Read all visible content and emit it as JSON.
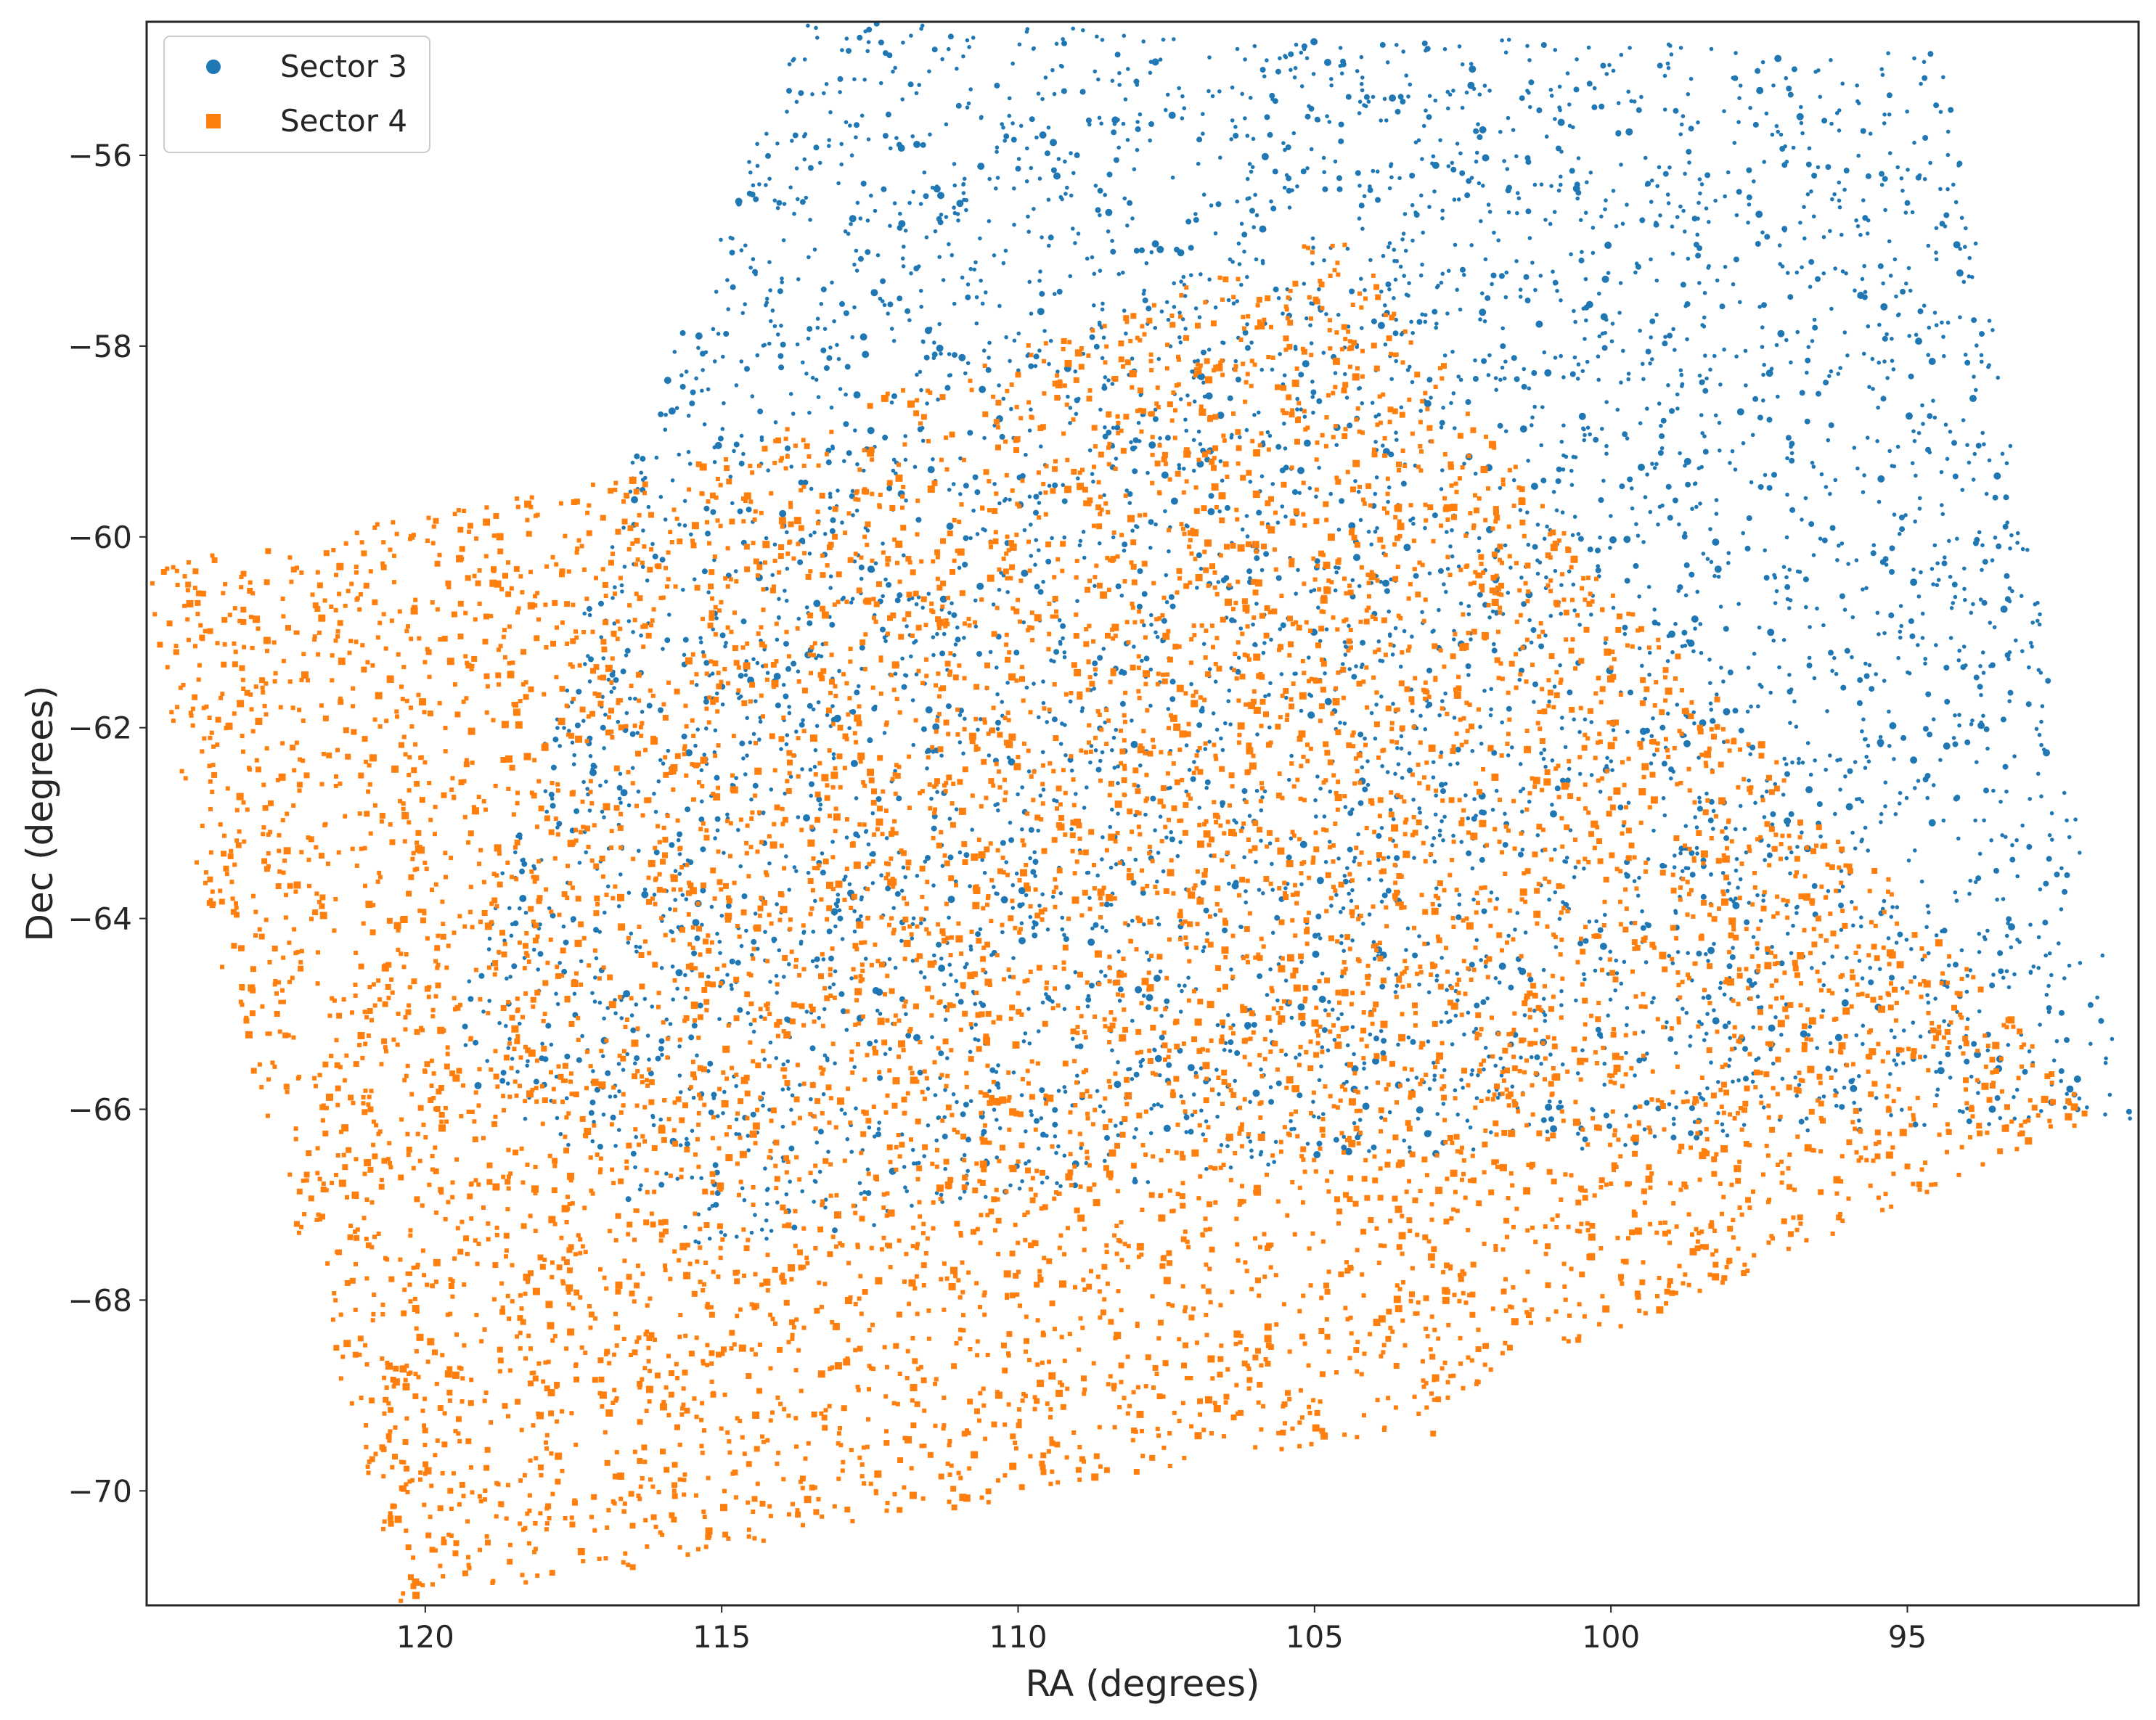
{
  "chart_data": {
    "type": "scatter",
    "title": "",
    "xlabel": "RA (degrees)",
    "ylabel": "Dec (degrees)",
    "xlim": [
      124.7,
      91.1
    ],
    "ylim": [
      -71.2,
      -54.6
    ],
    "x_inverted": true,
    "xticks": [
      120,
      115,
      110,
      105,
      100,
      95
    ],
    "xtick_labels": [
      "120",
      "115",
      "110",
      "105",
      "100",
      "95"
    ],
    "yticks": [
      -56,
      -58,
      -60,
      -62,
      -64,
      -66,
      -68,
      -70
    ],
    "ytick_labels": [
      "−56",
      "−58",
      "−60",
      "−62",
      "−64",
      "−66",
      "−68",
      "−70"
    ],
    "grid": false,
    "legend_position": "top-left",
    "series": [
      {
        "name": "Sector 3",
        "marker": "circle",
        "color": "#1f77b4",
        "footprint_corners": [
          [
            113.6,
            -54.6
          ],
          [
            94.4,
            -54.9
          ],
          [
            91.2,
            -66.1
          ],
          [
            106.0,
            -66.6
          ],
          [
            115.4,
            -67.5
          ],
          [
            119.7,
            -65.5
          ],
          [
            116.3,
            -58.8
          ]
        ],
        "approx_point_count": 5200,
        "sample_points": [
          {
            "x": 113.0,
            "y": -55.2
          },
          {
            "x": 110.2,
            "y": -55.8
          },
          {
            "x": 105.8,
            "y": -55.6
          },
          {
            "x": 101.5,
            "y": -55.4
          },
          {
            "x": 97.0,
            "y": -55.3
          },
          {
            "x": 95.0,
            "y": -56.5
          },
          {
            "x": 96.5,
            "y": -58.5
          },
          {
            "x": 94.2,
            "y": -60.5
          },
          {
            "x": 95.8,
            "y": -61.5
          },
          {
            "x": 93.5,
            "y": -63.5
          },
          {
            "x": 92.4,
            "y": -65.6
          },
          {
            "x": 94.0,
            "y": -65.5
          },
          {
            "x": 99.0,
            "y": -59.8
          },
          {
            "x": 102.5,
            "y": -57.2
          },
          {
            "x": 108.0,
            "y": -57.0
          },
          {
            "x": 112.0,
            "y": -57.5
          },
          {
            "x": 115.5,
            "y": -58.6
          },
          {
            "x": 117.0,
            "y": -62.0
          },
          {
            "x": 118.5,
            "y": -64.5
          },
          {
            "x": 113.0,
            "y": -64.0
          },
          {
            "x": 108.5,
            "y": -66.3
          },
          {
            "x": 104.0,
            "y": -66.4
          },
          {
            "x": 100.5,
            "y": -66.2
          },
          {
            "x": 98.0,
            "y": -64.5
          }
        ]
      },
      {
        "name": "Sector 4",
        "marker": "square",
        "color": "#ff7f0e",
        "footprint_corners": [
          [
            124.7,
            -60.3
          ],
          [
            115.9,
            -59.3
          ],
          [
            104.5,
            -56.8
          ],
          [
            100.0,
            -60.5
          ],
          [
            95.0,
            -63.8
          ],
          [
            91.8,
            -66.1
          ],
          [
            103.9,
            -69.4
          ],
          [
            120.4,
            -71.2
          ],
          [
            123.9,
            -63.5
          ]
        ],
        "approx_point_count": 7000,
        "sample_points": [
          {
            "x": 124.0,
            "y": -60.5
          },
          {
            "x": 119.4,
            "y": -60.7
          },
          {
            "x": 118.6,
            "y": -60.6
          },
          {
            "x": 117.0,
            "y": -59.8
          },
          {
            "x": 114.0,
            "y": -60.2
          },
          {
            "x": 110.0,
            "y": -58.3
          },
          {
            "x": 106.5,
            "y": -57.3
          },
          {
            "x": 104.5,
            "y": -57.8
          },
          {
            "x": 101.5,
            "y": -59.5
          },
          {
            "x": 100.5,
            "y": -61.3
          },
          {
            "x": 98.5,
            "y": -62.0
          },
          {
            "x": 96.5,
            "y": -64.0
          },
          {
            "x": 93.5,
            "y": -65.6
          },
          {
            "x": 95.0,
            "y": -66.6
          },
          {
            "x": 99.0,
            "y": -67.8
          },
          {
            "x": 103.0,
            "y": -69.4
          },
          {
            "x": 108.0,
            "y": -69.8
          },
          {
            "x": 112.0,
            "y": -70.2
          },
          {
            "x": 116.5,
            "y": -70.8
          },
          {
            "x": 120.2,
            "y": -71.0
          },
          {
            "x": 121.5,
            "y": -68.5
          },
          {
            "x": 122.5,
            "y": -65.0
          },
          {
            "x": 122.0,
            "y": -62.5
          },
          {
            "x": 110.5,
            "y": -65.0
          },
          {
            "x": 106.0,
            "y": -63.0
          },
          {
            "x": 113.0,
            "y": -62.0
          },
          {
            "x": 103.0,
            "y": -64.5
          }
        ]
      }
    ]
  },
  "legend": {
    "items": [
      {
        "label": "Sector 3",
        "color": "#1f77b4",
        "marker": "circle"
      },
      {
        "label": "Sector 4",
        "color": "#ff7f0e",
        "marker": "square"
      }
    ]
  }
}
